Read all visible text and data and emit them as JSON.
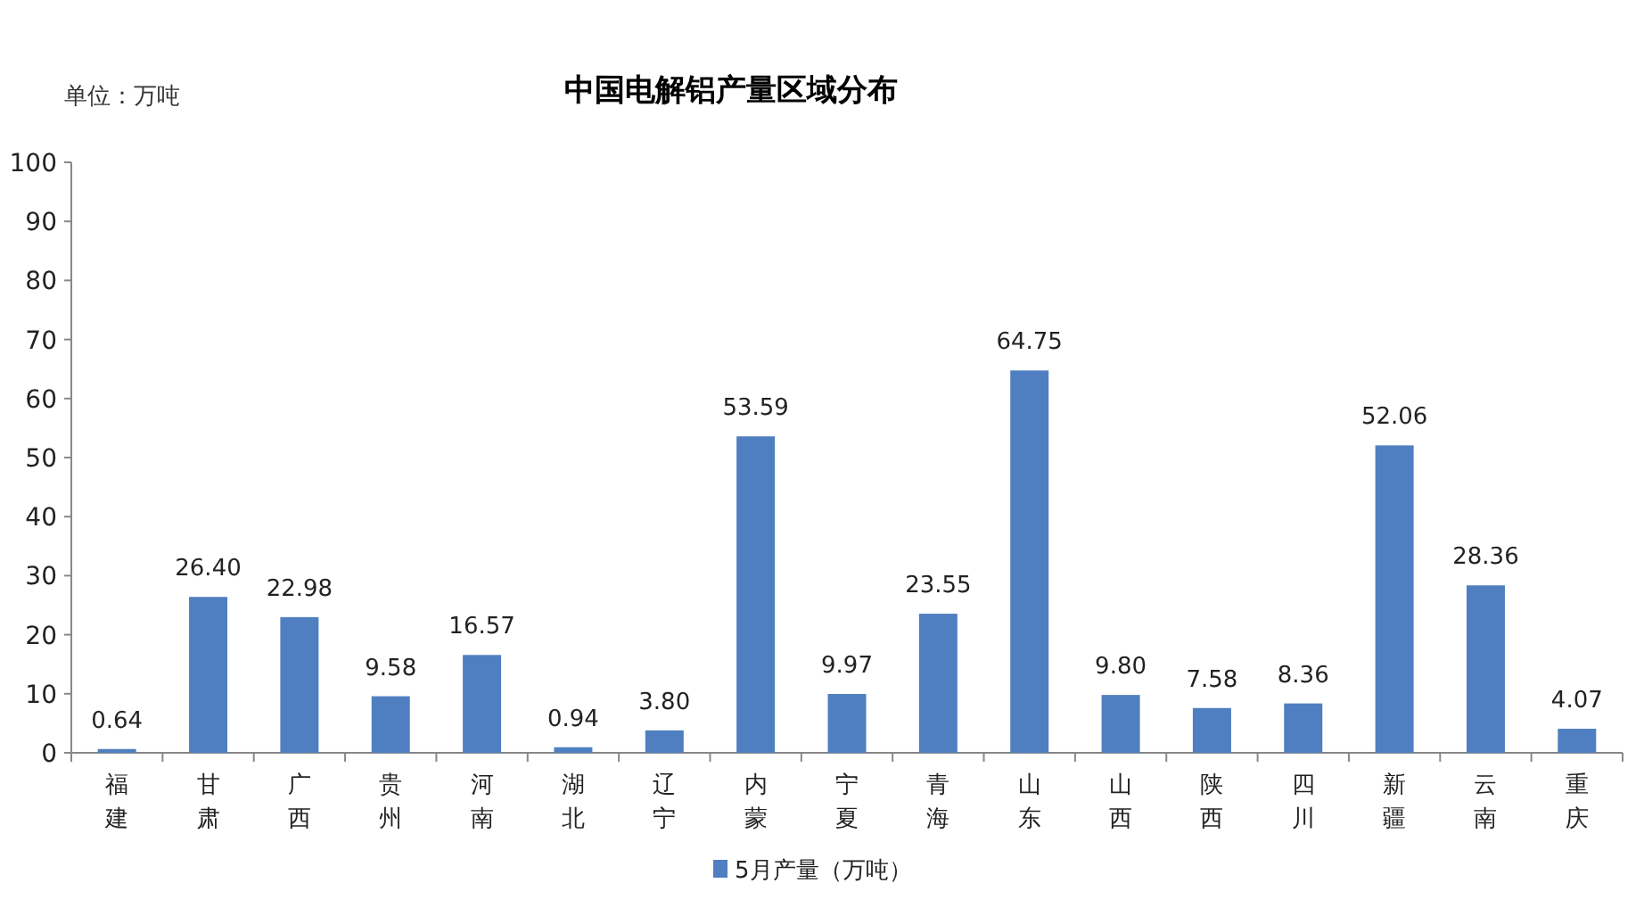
{
  "chart_data": {
    "type": "bar",
    "title": "中国电解铝产量区域分布",
    "annotations": [
      "单位：万吨"
    ],
    "categories": [
      "福建",
      "甘肃",
      "广西",
      "贵州",
      "河南",
      "湖北",
      "辽宁",
      "内蒙",
      "宁夏",
      "青海",
      "山东",
      "山西",
      "陕西",
      "四川",
      "新疆",
      "云南",
      "重庆"
    ],
    "series": [
      {
        "name": "5月产量（万吨）",
        "color": "#4f7fc0",
        "values": [
          0.64,
          26.4,
          22.98,
          9.58,
          16.57,
          0.94,
          3.8,
          53.59,
          9.97,
          23.55,
          64.75,
          9.8,
          7.58,
          8.36,
          52.06,
          28.36,
          4.07
        ],
        "value_labels": [
          "0.64",
          "26.40",
          "22.98",
          "9.58",
          "16.57",
          "0.94",
          "3.80",
          "53.59",
          "9.97",
          "23.55",
          "64.75",
          "9.80",
          "7.58",
          "8.36",
          "52.06",
          "28.36",
          "4.07"
        ]
      }
    ],
    "ylim": [
      0,
      100
    ],
    "yticks": [
      0,
      10,
      20,
      30,
      40,
      50,
      60,
      70,
      80,
      90,
      100
    ],
    "legend": "bottom"
  }
}
